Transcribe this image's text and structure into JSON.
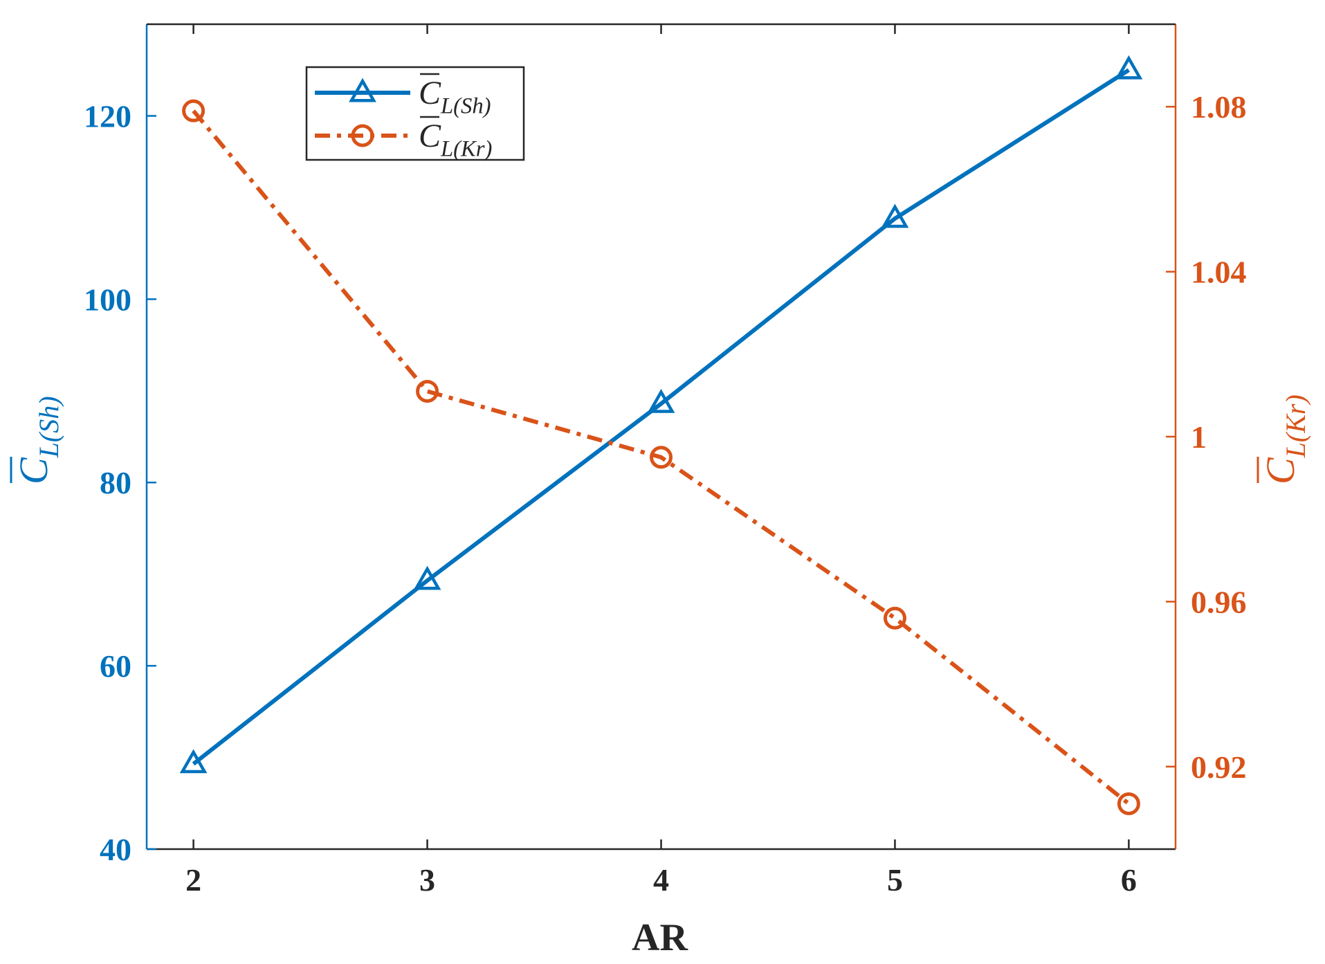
{
  "chart_data": {
    "type": "line",
    "x": [
      2,
      3,
      4,
      5,
      6
    ],
    "xlabel": "AR",
    "xlim": [
      1.8,
      6.2
    ],
    "xticks": [
      2,
      3,
      4,
      5,
      6
    ],
    "yleft": {
      "label_base": "C",
      "label_sub": "L(Sh)",
      "lim": [
        40,
        130
      ],
      "ticks": [
        40,
        60,
        80,
        100,
        120
      ],
      "color": "#0072BD"
    },
    "yright": {
      "label_base": "C",
      "label_sub": "L(Kr)",
      "lim": [
        0.9,
        1.1
      ],
      "ticks": [
        0.92,
        0.96,
        1,
        1.04,
        1.08
      ],
      "tick_labels": [
        "0.92",
        "0.96",
        "1",
        "1.04",
        "1.08"
      ],
      "color": "#D95319"
    },
    "series": [
      {
        "name": "C̄_L(Sh)",
        "legend_base": "C",
        "legend_sub": "L(Sh)",
        "axis": "left",
        "values": [
          49.3,
          69.3,
          88.6,
          108.8,
          125
        ],
        "color": "#0072BD",
        "line_style": "solid",
        "marker": "triangle"
      },
      {
        "name": "C̄_L(Kr)",
        "legend_base": "C",
        "legend_sub": "L(Kr)",
        "axis": "right",
        "values": [
          1.079,
          1.011,
          0.995,
          0.956,
          0.911
        ],
        "color": "#D95319",
        "line_style": "dash-dot",
        "marker": "circle"
      }
    ],
    "legend_position": "top-left",
    "grid": false
  }
}
